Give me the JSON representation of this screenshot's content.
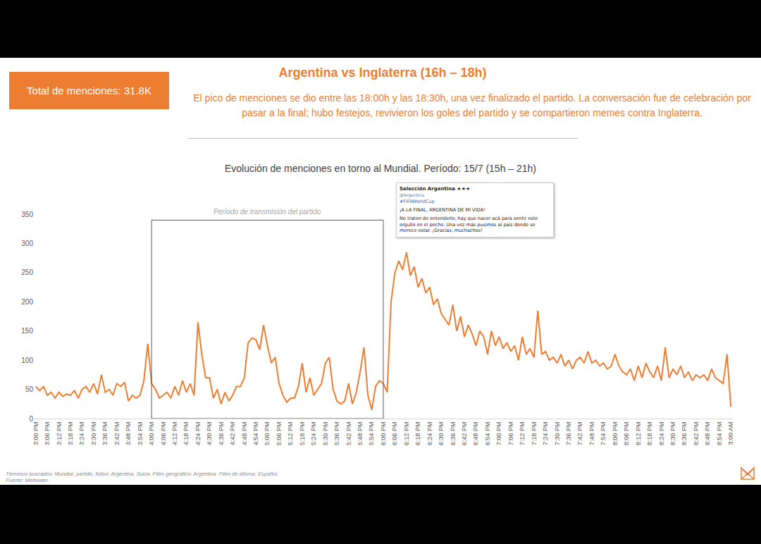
{
  "header": {
    "total_box": "Total de menciones: 31.8K",
    "title": "Argentina vs Inglaterra (16h – 18h)",
    "description": "El pico de menciones se dio entre las 18:00h y las 18:30h, una vez finalizado el partido. La conversación fue de celebración por pasar a la final; hubo festejos, revivieron los goles del partido y se compartieron memes contra Inglaterra."
  },
  "chart_data": {
    "type": "line",
    "title": "Evolución de menciones en torno al Mundial. Período: 15/7 (15h – 21h)",
    "categories": [
      "3:00 PM",
      null,
      null,
      "3:06 PM",
      null,
      null,
      "3:12 PM",
      null,
      null,
      "3:18 PM",
      null,
      null,
      "3:24 PM",
      null,
      null,
      "3:30 PM",
      null,
      null,
      "3:36 PM",
      null,
      null,
      "3:42 PM",
      null,
      null,
      "3:48 PM",
      null,
      null,
      "3:54 PM",
      null,
      null,
      "4:00 PM",
      null,
      null,
      "4:06 PM",
      null,
      null,
      "4:12 PM",
      null,
      null,
      "4:18 PM",
      null,
      null,
      "4:24 PM",
      null,
      null,
      "4:30 PM",
      null,
      null,
      "4:36 PM",
      null,
      null,
      "4:42 PM",
      null,
      null,
      "4:48 PM",
      null,
      null,
      "4:54 PM",
      null,
      null,
      "5:00 PM",
      null,
      null,
      "5:06 PM",
      null,
      null,
      "5:12 PM",
      null,
      null,
      "5:18 PM",
      null,
      null,
      "5:24 PM",
      null,
      null,
      "5:30 PM",
      null,
      null,
      "5:36 PM",
      null,
      null,
      "5:42 PM",
      null,
      null,
      "5:48 PM",
      null,
      null,
      "5:54 PM",
      null,
      null,
      "6:00 PM",
      null,
      null,
      "6:06 PM",
      null,
      null,
      "6:12 PM",
      null,
      null,
      "6:18 PM",
      null,
      null,
      "6:24 PM",
      null,
      null,
      "6:30 PM",
      null,
      null,
      "6:36 PM",
      null,
      null,
      "6:42 PM",
      null,
      null,
      "6:48 PM",
      null,
      null,
      "6:54 PM",
      null,
      null,
      "7:00 PM",
      null,
      null,
      "7:06 PM",
      null,
      null,
      "7:12 PM",
      null,
      null,
      "7:18 PM",
      null,
      null,
      "7:24 PM",
      null,
      null,
      "7:30 PM",
      null,
      null,
      "7:36 PM",
      null,
      null,
      "7:42 PM",
      null,
      null,
      "7:48 PM",
      null,
      null,
      "7:54 PM",
      null,
      null,
      "8:00 PM",
      null,
      null,
      "8:06 PM",
      null,
      null,
      "8:12 PM",
      null,
      null,
      "8:18 PM",
      null,
      null,
      "8:24 PM",
      null,
      null,
      "8:30 PM",
      null,
      null,
      "8:36 PM",
      null,
      null,
      "8:42 PM",
      null,
      null,
      "8:48 PM",
      null,
      null,
      "8:54 PM",
      null,
      null,
      "3:00 AM"
    ],
    "values": [
      55,
      48,
      55,
      40,
      45,
      35,
      45,
      38,
      42,
      40,
      48,
      35,
      50,
      55,
      45,
      60,
      42,
      75,
      45,
      50,
      40,
      60,
      55,
      62,
      30,
      40,
      35,
      40,
      65,
      128,
      60,
      50,
      35,
      40,
      45,
      35,
      55,
      40,
      65,
      45,
      60,
      40,
      165,
      110,
      70,
      70,
      35,
      50,
      25,
      45,
      30,
      40,
      55,
      55,
      70,
      130,
      138,
      135,
      118,
      160,
      125,
      95,
      105,
      60,
      40,
      28,
      35,
      35,
      55,
      95,
      45,
      70,
      40,
      50,
      60,
      95,
      105,
      50,
      30,
      25,
      30,
      60,
      25,
      45,
      80,
      122,
      40,
      15,
      55,
      65,
      60,
      45,
      200,
      250,
      270,
      255,
      285,
      245,
      260,
      225,
      240,
      215,
      225,
      195,
      205,
      180,
      170,
      160,
      195,
      150,
      175,
      140,
      160,
      145,
      125,
      150,
      140,
      110,
      150,
      125,
      140,
      120,
      130,
      115,
      125,
      100,
      140,
      110,
      120,
      105,
      185,
      110,
      115,
      100,
      105,
      95,
      110,
      90,
      100,
      85,
      100,
      105,
      95,
      115,
      95,
      100,
      90,
      95,
      85,
      90,
      110,
      90,
      80,
      75,
      85,
      65,
      90,
      70,
      95,
      80,
      70,
      90,
      65,
      122,
      70,
      85,
      75,
      90,
      70,
      80,
      65,
      75,
      70,
      75,
      65,
      85,
      70,
      65,
      60,
      110,
      20
    ],
    "color": "#ED7D31",
    "ylim": [
      0,
      350
    ],
    "yticks": [
      0,
      50,
      100,
      150,
      200,
      250,
      300,
      350
    ],
    "grid": false,
    "annotations": [
      {
        "text": "Período de transmisión del partido",
        "from": "4:00 PM",
        "to": "6:00 PM",
        "top": 340
      }
    ]
  },
  "embedded_post": {
    "author": "Selección Argentina ★★★",
    "handle": "@Argentina",
    "hashtag": "#FIFAWorldCup",
    "headline": "¡A LA FINAL, ARGENTINA DE MI VIDA!",
    "text": "No traten de entenderlo, hay que nacer acá para sentir este orgullo en el pecho. Una vez más pusimos al país donde se merece estar. ¡Gracias, muchachos!"
  },
  "footnote": [
    "Términos buscados: Mundial, partido, fútbol, Argentina, Suiza. Filtro geográfico: Argentina. Filtro de idioma: Español.",
    "Fuente: Meltwater."
  ]
}
